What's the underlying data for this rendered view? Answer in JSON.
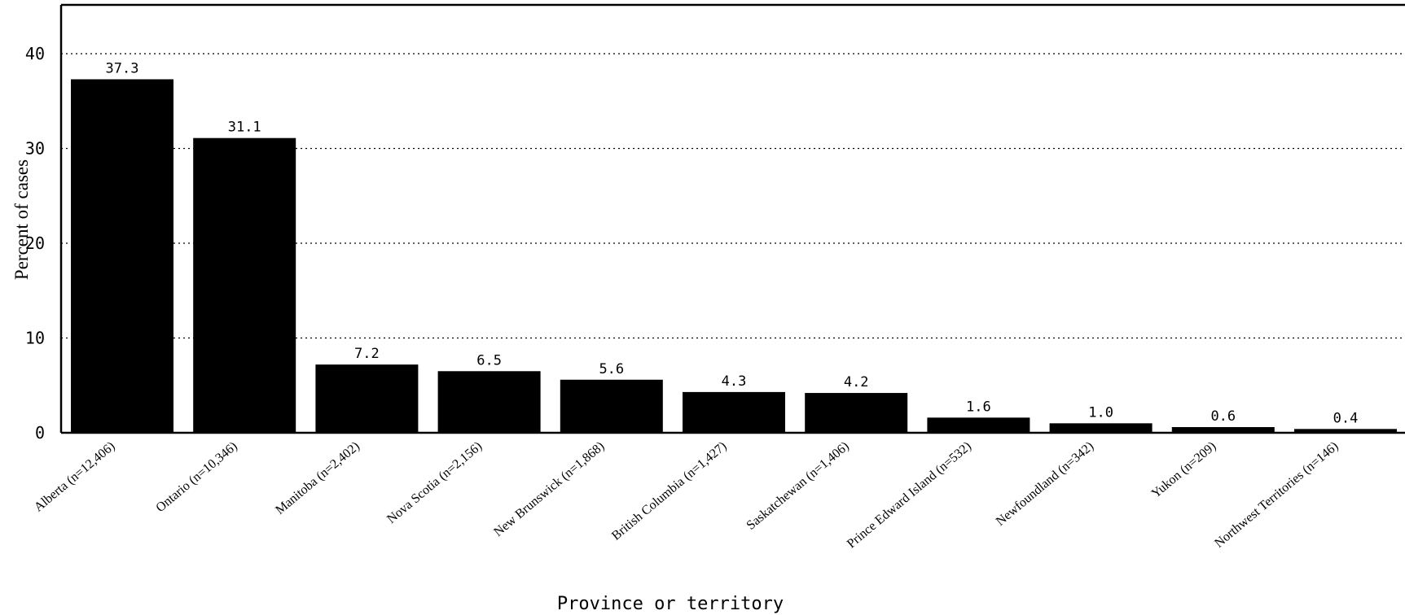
{
  "chart_data": {
    "type": "bar",
    "title": "",
    "xlabel": "Province or territory",
    "ylabel": "Percent of cases",
    "ylim": [
      0,
      45
    ],
    "yticks": [
      0,
      10,
      20,
      30,
      40
    ],
    "grid": "horizontal-dotted",
    "categories": [
      "Alberta (n=12,406)",
      "Ontario (n=10,346)",
      "Manitoba (n=2,402)",
      "Nova Scotia (n=2,156)",
      "New Brunswick (n=1,868)",
      "British Columbia (n=1,427)",
      "Saskatchewan (n=1,406)",
      "Prince Edward Island (n=532)",
      "Newfoundland (n=342)",
      "Yukon (n=209)",
      "Northwest Territories (n=146)"
    ],
    "values": [
      37.3,
      31.1,
      7.2,
      6.5,
      5.6,
      4.3,
      4.2,
      1.6,
      1.0,
      0.6,
      0.4
    ],
    "value_labels": [
      "37.3",
      "31.1",
      "7.2",
      "6.5",
      "5.6",
      "4.3",
      "4.2",
      "1.6",
      "1.0",
      "0.6",
      "0.4"
    ],
    "bar_color": "#000000"
  }
}
